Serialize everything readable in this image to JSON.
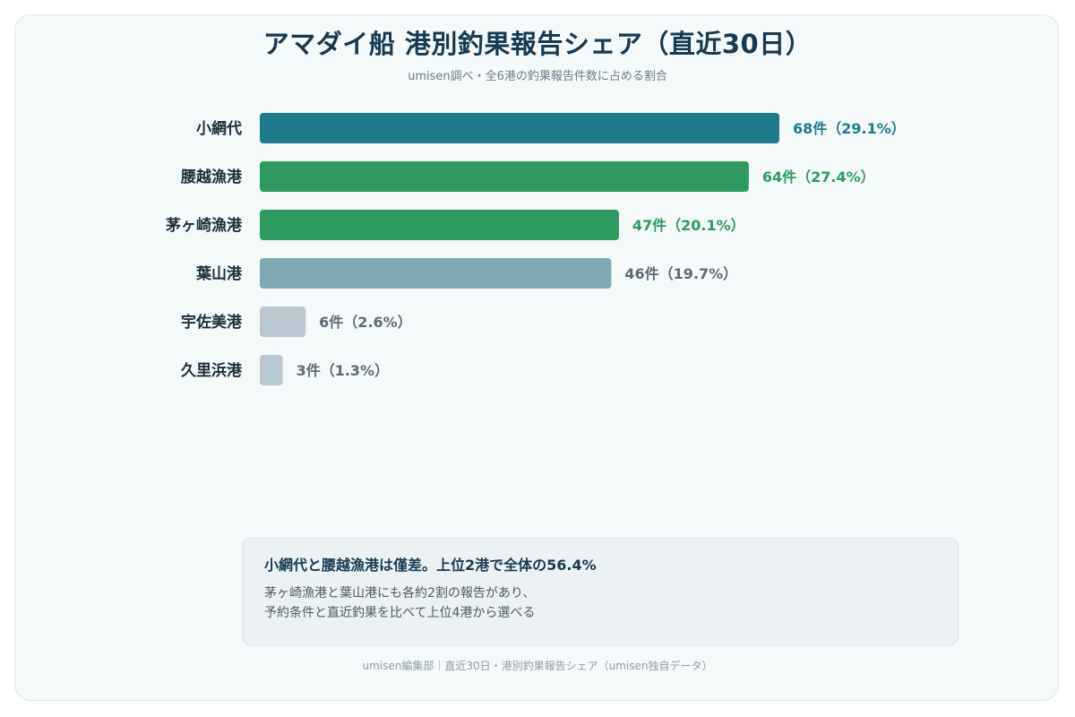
{
  "title": "アマダイ船 港別釣果報告シェア（直近30日）",
  "subtitle": "umisen調べ・全6港の釣果報告件数に占める割合",
  "chart_data": {
    "type": "bar",
    "orientation": "horizontal",
    "categories": [
      "小網代",
      "腰越漁港",
      "茅ヶ崎漁港",
      "葉山港",
      "宇佐美港",
      "久里浜港"
    ],
    "values": [
      68,
      64,
      47,
      46,
      6,
      3
    ],
    "percentages": [
      29.1,
      27.4,
      20.1,
      19.7,
      2.6,
      1.3
    ],
    "value_labels": [
      "68件（29.1%）",
      "64件（27.4%）",
      "47件（20.1%）",
      "46件（19.7%）",
      "6件（2.6%）",
      "3件（1.3%）"
    ],
    "bar_colors": [
      "#1f7a8c",
      "#2e9a62",
      "#2e9a62",
      "#7fa9b2",
      "#b9c8d0",
      "#b9c8d0"
    ],
    "label_colors": [
      "#1f7a8c",
      "#2e9a62",
      "#2e9a62",
      "#5d6b73",
      "#5d6b73",
      "#5d6b73"
    ],
    "xlim": [
      0,
      68
    ],
    "grid": false,
    "legend": "none"
  },
  "callout": {
    "heading": "小網代と腰越漁港は僅差。上位2港で全体の56.4%",
    "line1": "茅ヶ崎漁港と葉山港にも各約2割の報告があり、",
    "line2": "予約条件と直近釣果を比べて上位4港から選べる"
  },
  "footer": "umisen編集部｜直近30日・港別釣果報告シェア（umisen独自データ）"
}
